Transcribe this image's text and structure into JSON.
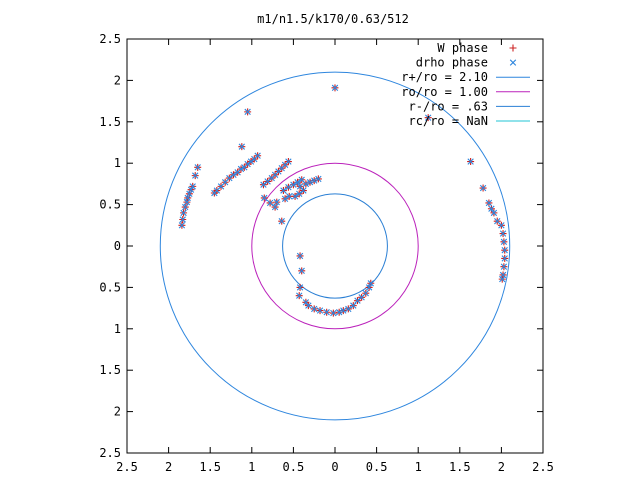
{
  "chart_data": {
    "type": "scatter",
    "title": "m1/n1.5/k170/0.63/512",
    "xlabel": "",
    "ylabel": "",
    "xlim": [
      -2.5,
      2.5
    ],
    "ylim": [
      -2.5,
      2.5
    ],
    "x_ticks": [
      {
        "value": -2.5,
        "label": "2.5"
      },
      {
        "value": -2.0,
        "label": "2"
      },
      {
        "value": -1.5,
        "label": "1.5"
      },
      {
        "value": -1.0,
        "label": "1"
      },
      {
        "value": -0.5,
        "label": "0.5"
      },
      {
        "value": 0.0,
        "label": "0"
      },
      {
        "value": 0.5,
        "label": "0.5"
      },
      {
        "value": 1.0,
        "label": "1"
      },
      {
        "value": 1.5,
        "label": "1.5"
      },
      {
        "value": 2.0,
        "label": "2"
      },
      {
        "value": 2.5,
        "label": "2.5"
      }
    ],
    "y_ticks": [
      {
        "value": 2.5,
        "label": "2.5"
      },
      {
        "value": 2.0,
        "label": "2"
      },
      {
        "value": 1.5,
        "label": "1.5"
      },
      {
        "value": 1.0,
        "label": "1"
      },
      {
        "value": 0.5,
        "label": "0.5"
      },
      {
        "value": 0.0,
        "label": "0"
      },
      {
        "value": -0.5,
        "label": "0.5"
      },
      {
        "value": -1.0,
        "label": "1"
      },
      {
        "value": -1.5,
        "label": "1.5"
      },
      {
        "value": -2.0,
        "label": "2"
      },
      {
        "value": -2.5,
        "label": "2.5"
      }
    ],
    "grid": false,
    "legend_position": "top-right",
    "series": [
      {
        "name": "W phase",
        "marker": "plus",
        "color": "#cc2222",
        "points": [
          [
            -1.84,
            0.25
          ],
          [
            -1.83,
            0.32
          ],
          [
            -1.82,
            0.4
          ],
          [
            -1.8,
            0.47
          ],
          [
            -1.78,
            0.53
          ],
          [
            -1.77,
            0.58
          ],
          [
            -1.75,
            0.63
          ],
          [
            -1.73,
            0.68
          ],
          [
            -1.71,
            0.72
          ],
          [
            -1.68,
            0.85
          ],
          [
            -1.65,
            0.95
          ],
          [
            -1.45,
            0.64
          ],
          [
            -1.42,
            0.67
          ],
          [
            -1.37,
            0.72
          ],
          [
            -1.32,
            0.77
          ],
          [
            -1.27,
            0.82
          ],
          [
            -1.22,
            0.86
          ],
          [
            -1.17,
            0.89
          ],
          [
            -1.13,
            0.93
          ],
          [
            -1.09,
            0.95
          ],
          [
            -1.05,
            0.99
          ],
          [
            -1.01,
            1.02
          ],
          [
            -0.97,
            1.05
          ],
          [
            -0.93,
            1.09
          ],
          [
            -0.86,
            0.74
          ],
          [
            -0.81,
            0.78
          ],
          [
            -0.76,
            0.82
          ],
          [
            -0.72,
            0.86
          ],
          [
            -0.68,
            0.9
          ],
          [
            -0.64,
            0.94
          ],
          [
            -0.6,
            0.98
          ],
          [
            -0.56,
            1.02
          ],
          [
            -0.62,
            0.67
          ],
          [
            -0.56,
            0.71
          ],
          [
            -0.5,
            0.74
          ],
          [
            -0.45,
            0.77
          ],
          [
            -0.4,
            0.8
          ],
          [
            -1.05,
            1.62
          ],
          [
            -1.12,
            1.2
          ],
          [
            -0.72,
            0.47
          ],
          [
            -0.64,
            0.3
          ],
          [
            -0.85,
            0.58
          ],
          [
            -0.78,
            0.52
          ],
          [
            -0.7,
            0.53
          ],
          [
            -0.6,
            0.57
          ],
          [
            -0.55,
            0.6
          ],
          [
            -0.48,
            0.6
          ],
          [
            -0.43,
            0.63
          ],
          [
            -0.38,
            0.67
          ],
          [
            -0.42,
            0.72
          ],
          [
            -0.35,
            0.75
          ],
          [
            -0.3,
            0.77
          ],
          [
            -0.25,
            0.79
          ],
          [
            -0.2,
            0.81
          ],
          [
            -0.42,
            -0.12
          ],
          [
            -0.4,
            -0.3
          ],
          [
            -0.42,
            -0.5
          ],
          [
            -0.43,
            -0.6
          ],
          [
            -0.35,
            -0.68
          ],
          [
            -0.32,
            -0.72
          ],
          [
            -0.25,
            -0.76
          ],
          [
            -0.18,
            -0.78
          ],
          [
            -0.1,
            -0.8
          ],
          [
            -0.02,
            -0.81
          ],
          [
            0.05,
            -0.8
          ],
          [
            0.1,
            -0.78
          ],
          [
            0.16,
            -0.76
          ],
          [
            0.22,
            -0.72
          ],
          [
            0.27,
            -0.66
          ],
          [
            0.32,
            -0.62
          ],
          [
            0.37,
            -0.57
          ],
          [
            0.41,
            -0.5
          ],
          [
            0.43,
            -0.45
          ],
          [
            0.0,
            1.91
          ],
          [
            1.12,
            1.55
          ],
          [
            1.63,
            1.02
          ],
          [
            1.78,
            0.7
          ],
          [
            1.85,
            0.52
          ],
          [
            1.88,
            0.45
          ],
          [
            1.91,
            0.4
          ],
          [
            1.95,
            0.3
          ],
          [
            2.0,
            0.25
          ],
          [
            2.02,
            0.15
          ],
          [
            2.03,
            0.05
          ],
          [
            2.04,
            -0.05
          ],
          [
            2.04,
            -0.15
          ],
          [
            2.03,
            -0.25
          ],
          [
            2.02,
            -0.35
          ],
          [
            2.01,
            -0.4
          ]
        ]
      },
      {
        "name": "drho phase",
        "marker": "cross",
        "color": "#2e86de",
        "points": [
          [
            -1.84,
            0.25
          ],
          [
            -1.83,
            0.32
          ],
          [
            -1.82,
            0.4
          ],
          [
            -1.8,
            0.47
          ],
          [
            -1.78,
            0.53
          ],
          [
            -1.77,
            0.58
          ],
          [
            -1.75,
            0.63
          ],
          [
            -1.73,
            0.68
          ],
          [
            -1.71,
            0.72
          ],
          [
            -1.68,
            0.85
          ],
          [
            -1.65,
            0.95
          ],
          [
            -1.45,
            0.64
          ],
          [
            -1.42,
            0.67
          ],
          [
            -1.37,
            0.72
          ],
          [
            -1.32,
            0.77
          ],
          [
            -1.27,
            0.82
          ],
          [
            -1.22,
            0.86
          ],
          [
            -1.17,
            0.89
          ],
          [
            -1.13,
            0.93
          ],
          [
            -1.09,
            0.95
          ],
          [
            -1.05,
            0.99
          ],
          [
            -1.01,
            1.02
          ],
          [
            -0.97,
            1.05
          ],
          [
            -0.93,
            1.09
          ],
          [
            -0.86,
            0.74
          ],
          [
            -0.81,
            0.78
          ],
          [
            -0.76,
            0.82
          ],
          [
            -0.72,
            0.86
          ],
          [
            -0.68,
            0.9
          ],
          [
            -0.64,
            0.94
          ],
          [
            -0.6,
            0.98
          ],
          [
            -0.56,
            1.02
          ],
          [
            -0.62,
            0.67
          ],
          [
            -0.56,
            0.71
          ],
          [
            -0.5,
            0.74
          ],
          [
            -0.45,
            0.77
          ],
          [
            -0.4,
            0.8
          ],
          [
            -1.05,
            1.62
          ],
          [
            -1.12,
            1.2
          ],
          [
            -0.72,
            0.47
          ],
          [
            -0.64,
            0.3
          ],
          [
            -0.85,
            0.58
          ],
          [
            -0.78,
            0.52
          ],
          [
            -0.7,
            0.53
          ],
          [
            -0.6,
            0.57
          ],
          [
            -0.55,
            0.6
          ],
          [
            -0.48,
            0.6
          ],
          [
            -0.43,
            0.63
          ],
          [
            -0.38,
            0.67
          ],
          [
            -0.42,
            0.72
          ],
          [
            -0.35,
            0.75
          ],
          [
            -0.3,
            0.77
          ],
          [
            -0.25,
            0.79
          ],
          [
            -0.2,
            0.81
          ],
          [
            -0.42,
            -0.12
          ],
          [
            -0.4,
            -0.3
          ],
          [
            -0.42,
            -0.5
          ],
          [
            -0.43,
            -0.6
          ],
          [
            -0.35,
            -0.68
          ],
          [
            -0.32,
            -0.72
          ],
          [
            -0.25,
            -0.76
          ],
          [
            -0.18,
            -0.78
          ],
          [
            -0.1,
            -0.8
          ],
          [
            -0.02,
            -0.81
          ],
          [
            0.05,
            -0.8
          ],
          [
            0.1,
            -0.78
          ],
          [
            0.16,
            -0.76
          ],
          [
            0.22,
            -0.72
          ],
          [
            0.27,
            -0.66
          ],
          [
            0.32,
            -0.62
          ],
          [
            0.37,
            -0.57
          ],
          [
            0.41,
            -0.5
          ],
          [
            0.43,
            -0.45
          ],
          [
            0.0,
            1.91
          ],
          [
            1.12,
            1.55
          ],
          [
            1.63,
            1.02
          ],
          [
            1.78,
            0.7
          ],
          [
            1.85,
            0.52
          ],
          [
            1.88,
            0.45
          ],
          [
            1.91,
            0.4
          ],
          [
            1.95,
            0.3
          ],
          [
            2.0,
            0.25
          ],
          [
            2.02,
            0.15
          ],
          [
            2.03,
            0.05
          ],
          [
            2.04,
            -0.05
          ],
          [
            2.04,
            -0.15
          ],
          [
            2.03,
            -0.25
          ],
          [
            2.02,
            -0.35
          ],
          [
            2.01,
            -0.4
          ]
        ]
      }
    ],
    "circles": [
      {
        "name": "r+/ro = 2.10",
        "radius": 2.1,
        "color": "#2e86de"
      },
      {
        "name": "ro/ro = 1.00",
        "radius": 1.0,
        "color": "#bb22bb"
      },
      {
        "name": "r-/ro = .63",
        "radius": 0.63,
        "color": "#2a7fd4"
      },
      {
        "name": "rc/ro = NaN",
        "radius": null,
        "color": "#22c4d4"
      }
    ]
  }
}
